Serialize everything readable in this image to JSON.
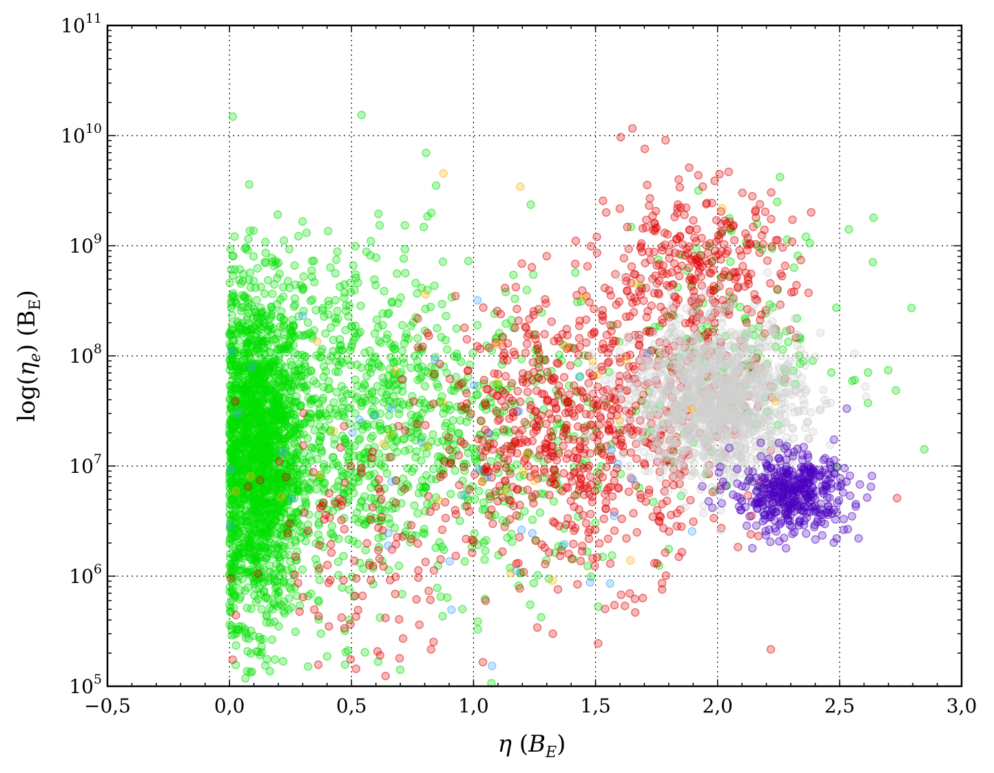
{
  "chart_data": {
    "type": "scatter",
    "title": "",
    "xlabel": "η (B_E)",
    "ylabel": "log(η_e) (B_E)",
    "xlim": [
      -0.5,
      3.0
    ],
    "ylim_log10": [
      5,
      11
    ],
    "y_scale": "log",
    "grid": true,
    "x_ticks": [
      "−0,5",
      "0,0",
      "0,5",
      "1,0",
      "1,5",
      "2,0",
      "2,5",
      "3,0"
    ],
    "y_ticks": [
      {
        "base": "10",
        "exp": "5"
      },
      {
        "base": "10",
        "exp": "6"
      },
      {
        "base": "10",
        "exp": "7"
      },
      {
        "base": "10",
        "exp": "8"
      },
      {
        "base": "10",
        "exp": "9"
      },
      {
        "base": "10",
        "exp": "10"
      },
      {
        "base": "10",
        "exp": "11"
      }
    ],
    "series": [
      {
        "color": "#00e000",
        "clusters": [
          {
            "cx": 0.12,
            "cy": 7.1,
            "sx": 0.09,
            "sy": 0.75,
            "n": 1900
          },
          {
            "cx": 0.45,
            "cy": 7.5,
            "sx": 0.25,
            "sy": 0.75,
            "n": 650
          },
          {
            "cx": 0.95,
            "cy": 7.2,
            "sx": 0.35,
            "sy": 0.8,
            "n": 450
          },
          {
            "cx": 2.05,
            "cy": 8.1,
            "sx": 0.25,
            "sy": 0.55,
            "n": 180
          }
        ]
      },
      {
        "color": "#e00000",
        "clusters": [
          {
            "cx": 1.45,
            "cy": 7.3,
            "sx": 0.3,
            "sy": 0.65,
            "n": 750
          },
          {
            "cx": 1.9,
            "cy": 8.7,
            "sx": 0.2,
            "sy": 0.45,
            "n": 350
          },
          {
            "cx": 0.55,
            "cy": 6.3,
            "sx": 0.25,
            "sy": 0.6,
            "n": 120
          }
        ]
      },
      {
        "color": "#cfcfcf",
        "clusters": [
          {
            "cx": 2.0,
            "cy": 7.6,
            "sx": 0.17,
            "sy": 0.35,
            "n": 1300
          }
        ]
      },
      {
        "color": "#4a00c0",
        "clusters": [
          {
            "cx": 2.3,
            "cy": 6.75,
            "sx": 0.12,
            "sy": 0.18,
            "n": 420
          }
        ]
      },
      {
        "color": "#3aa0ff",
        "clusters": [
          {
            "cx": 0.9,
            "cy": 7.0,
            "sx": 0.5,
            "sy": 0.8,
            "n": 40
          }
        ]
      },
      {
        "color": "#ffb000",
        "clusters": [
          {
            "cx": 1.0,
            "cy": 7.6,
            "sx": 0.5,
            "sy": 0.8,
            "n": 35
          }
        ]
      }
    ]
  }
}
